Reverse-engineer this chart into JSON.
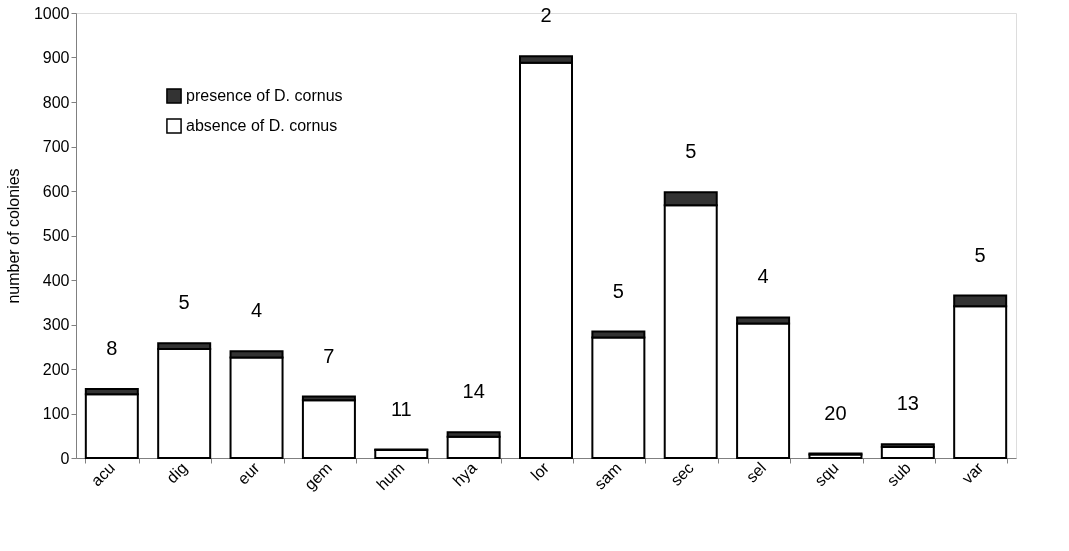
{
  "chart_data": {
    "type": "bar",
    "stacked": true,
    "ylabel": "number of colonies",
    "categories": [
      "acu",
      "dig",
      "eur",
      "gem",
      "hum",
      "hya",
      "lor",
      "sam",
      "sec",
      "sel",
      "squ",
      "sub",
      "var"
    ],
    "series": [
      {
        "name": "absence of D. cornus",
        "color": "#ffffff",
        "values": [
          143,
          245,
          226,
          130,
          18,
          48,
          888,
          271,
          568,
          302,
          8,
          25,
          341
        ]
      },
      {
        "name": "presence of D. cornus",
        "color": "#333333",
        "values": [
          12,
          13,
          14,
          8,
          1,
          10,
          15,
          13,
          29,
          14,
          2,
          6,
          24
        ]
      }
    ],
    "ylim": [
      0,
      1000
    ],
    "yticks": [
      0,
      100,
      200,
      300,
      400,
      500,
      600,
      700,
      800,
      900,
      1000
    ],
    "grid": false,
    "legend": "top left",
    "annotations": [
      "8",
      "5",
      "4",
      "7",
      "11",
      "14",
      "2",
      "5",
      "5",
      "4",
      "20",
      "13",
      "5"
    ]
  }
}
